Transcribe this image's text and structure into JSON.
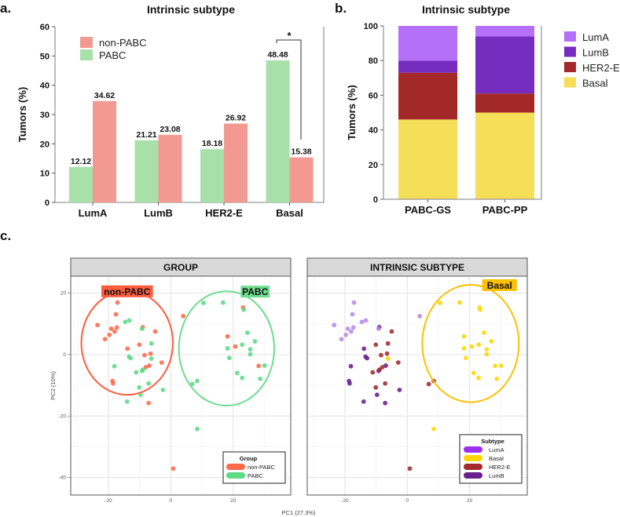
{
  "panel_labels": {
    "a": "a.",
    "b": "b.",
    "c": "c."
  },
  "chart_data": [
    {
      "panel": "a",
      "type": "bar",
      "title": "Intrinsic subtype",
      "xlabel": "",
      "ylabel": "Tumors (%)",
      "ylim": [
        0,
        60
      ],
      "yticks": [
        "0",
        "10",
        "20",
        "30",
        "40",
        "50",
        "60"
      ],
      "categories": [
        "LumA",
        "LumB",
        "HER2-E",
        "Basal"
      ],
      "series": [
        {
          "name": "PABC",
          "color": "#A8E0AA",
          "values": [
            12.12,
            21.21,
            18.18,
            48.48
          ]
        },
        {
          "name": "non-PABC",
          "color": "#F29A92",
          "values": [
            34.62,
            23.08,
            26.92,
            15.38
          ]
        }
      ],
      "legend": [
        "non-PABC",
        "PABC"
      ],
      "legend_position": "top-left",
      "significance": {
        "category": "Basal",
        "label": "*"
      }
    },
    {
      "panel": "b",
      "type": "bar",
      "stacked": true,
      "title": "Intrinsic subtype",
      "ylabel": "Tumors (%)",
      "ylim": [
        0,
        100
      ],
      "yticks": [
        "0",
        "20",
        "40",
        "60",
        "80",
        "100"
      ],
      "categories": [
        "PABC-GS",
        "PABC-PP"
      ],
      "series": [
        {
          "name": "Basal",
          "color": "#F5DE58",
          "values": [
            46,
            50
          ]
        },
        {
          "name": "HER2-E",
          "color": "#A32828",
          "values": [
            27,
            11
          ]
        },
        {
          "name": "LumB",
          "color": "#772CC0",
          "values": [
            7,
            33
          ]
        },
        {
          "name": "LumA",
          "color": "#B570FA",
          "values": [
            20,
            6
          ]
        }
      ],
      "legend": [
        "LumA",
        "LumB",
        "HER2-E",
        "Basal"
      ],
      "legend_position": "right"
    },
    {
      "panel": "c",
      "type": "scatter",
      "xlabel": "PC1 (27.3%)",
      "ylabel": "PC2 (10%)",
      "xlim": [
        -32.1,
        38.5
      ],
      "ylim": [
        -45.7,
        25.5
      ],
      "xticks": [
        "-20",
        "0",
        "20"
      ],
      "yticks": [
        "20",
        "0",
        "-20",
        "-40"
      ],
      "facets": [
        {
          "title": "GROUP",
          "color_by": "group",
          "legend_title": "Group",
          "legend": [
            {
              "name": "non-PABC",
              "color": "#FF6A4A"
            },
            {
              "name": "PABC",
              "color": "#5ED985"
            }
          ],
          "ellipses": [
            {
              "label": "non-PABC",
              "color": "#FF5B3D",
              "cx": -14.0,
              "cy": 3.8,
              "rx": 14.7,
              "ry": 16.9
            },
            {
              "label": "PABC",
              "color": "#6EDC8E",
              "cx": 17.9,
              "cy": 2.0,
              "rx": 15.3,
              "ry": 18.6
            }
          ]
        },
        {
          "title": "INTRINSIC SUBTYPE",
          "color_by": "subtype",
          "legend_title": "Subtype",
          "legend": [
            {
              "name": "LumA",
              "color": "#9B30F0"
            },
            {
              "name": "Basal",
              "color": "#FFD700"
            },
            {
              "name": "HER2-E",
              "color": "#A52A2A"
            },
            {
              "name": "LumB",
              "color": "#6A1F8F"
            }
          ],
          "point_colors": {
            "LumA": "#B68AEE",
            "Basal": "#FFD700",
            "HER2-E": "#A52A2A",
            "LumB": "#6A1F8F"
          },
          "ellipses": [
            {
              "label": "Basal",
              "color": "#FFC000",
              "cx": 20.3,
              "cy": 3.6,
              "rx": 15.5,
              "ry": 19.1
            }
          ]
        }
      ],
      "points": [
        {
          "x": -17.1,
          "y": 16.9,
          "group": "non-PABC",
          "subtype": "LumA"
        },
        {
          "x": -17.6,
          "y": 13.1,
          "group": "non-PABC",
          "subtype": "LumA"
        },
        {
          "x": -23.5,
          "y": 9.6,
          "group": "non-PABC",
          "subtype": "LumA"
        },
        {
          "x": -19.1,
          "y": 8.4,
          "group": "non-PABC",
          "subtype": "LumA"
        },
        {
          "x": -17.3,
          "y": 8.8,
          "group": "non-PABC",
          "subtype": "LumA"
        },
        {
          "x": -18.0,
          "y": 7.5,
          "group": "non-PABC",
          "subtype": "LumA"
        },
        {
          "x": -19.7,
          "y": 6.4,
          "group": "non-PABC",
          "subtype": "LumA"
        },
        {
          "x": -21.1,
          "y": 5.0,
          "group": "non-PABC",
          "subtype": "LumA"
        },
        {
          "x": -9.0,
          "y": 8.9,
          "group": "non-PABC",
          "subtype": "LumB"
        },
        {
          "x": -5.0,
          "y": 7.5,
          "group": "non-PABC",
          "subtype": "HER2-E"
        },
        {
          "x": -10.1,
          "y": 3.2,
          "group": "non-PABC",
          "subtype": "HER2-E"
        },
        {
          "x": -13.9,
          "y": 1.9,
          "group": "non-PABC",
          "subtype": "LumB"
        },
        {
          "x": -8.4,
          "y": -0.2,
          "group": "non-PABC",
          "subtype": "HER2-E"
        },
        {
          "x": -6.5,
          "y": 0.3,
          "group": "non-PABC",
          "subtype": "HER2-E"
        },
        {
          "x": -2.9,
          "y": -2.6,
          "group": "non-PABC",
          "subtype": "HER2-E"
        },
        {
          "x": -6.9,
          "y": -3.6,
          "group": "non-PABC",
          "subtype": "LumB"
        },
        {
          "x": -8.0,
          "y": -4.1,
          "group": "non-PABC",
          "subtype": "HER2-E"
        },
        {
          "x": -18.7,
          "y": -8.6,
          "group": "non-PABC",
          "subtype": "LumB"
        },
        {
          "x": -18.5,
          "y": -9.4,
          "group": "non-PABC",
          "subtype": "LumB"
        },
        {
          "x": -7.1,
          "y": -15.8,
          "group": "non-PABC",
          "subtype": "LumB"
        },
        {
          "x": 4.0,
          "y": 12.5,
          "group": "non-PABC",
          "subtype": "LumA"
        },
        {
          "x": 23.2,
          "y": 15.3,
          "group": "non-PABC",
          "subtype": "Basal"
        },
        {
          "x": 18.2,
          "y": 5.9,
          "group": "non-PABC",
          "subtype": "Basal"
        },
        {
          "x": 20.7,
          "y": 2.6,
          "group": "non-PABC",
          "subtype": "Basal"
        },
        {
          "x": 28.2,
          "y": -3.7,
          "group": "non-PABC",
          "subtype": "Basal"
        },
        {
          "x": 0.8,
          "y": -37.1,
          "group": "non-PABC",
          "subtype": "HER2-E"
        },
        {
          "x": -14.6,
          "y": 10.6,
          "group": "PABC",
          "subtype": "LumA"
        },
        {
          "x": -13.3,
          "y": 11.1,
          "group": "PABC",
          "subtype": "LumA"
        },
        {
          "x": -9.2,
          "y": 8.4,
          "group": "PABC",
          "subtype": "LumA"
        },
        {
          "x": -6.2,
          "y": 3.6,
          "group": "PABC",
          "subtype": "HER2-E"
        },
        {
          "x": -13.4,
          "y": -0.7,
          "group": "PABC",
          "subtype": "LumB"
        },
        {
          "x": -12.9,
          "y": -1.2,
          "group": "PABC",
          "subtype": "LumB"
        },
        {
          "x": -6.2,
          "y": -1.3,
          "group": "PABC",
          "subtype": "Basal"
        },
        {
          "x": -18.1,
          "y": -3.8,
          "group": "PABC",
          "subtype": "LumB"
        },
        {
          "x": -11.1,
          "y": -5.8,
          "group": "PABC",
          "subtype": "HER2-E"
        },
        {
          "x": -9.2,
          "y": -5.3,
          "group": "PABC",
          "subtype": "LumB"
        },
        {
          "x": -8.9,
          "y": -4.9,
          "group": "PABC",
          "subtype": "HER2-E"
        },
        {
          "x": -7.1,
          "y": -9.4,
          "group": "PABC",
          "subtype": "HER2-E"
        },
        {
          "x": -10.1,
          "y": -10.7,
          "group": "PABC",
          "subtype": "HER2-E"
        },
        {
          "x": -2.5,
          "y": -11.5,
          "group": "PABC",
          "subtype": "LumB"
        },
        {
          "x": -9.7,
          "y": -13.1,
          "group": "PABC",
          "subtype": "LumB"
        },
        {
          "x": -14.0,
          "y": -15.3,
          "group": "PABC",
          "subtype": "LumB"
        },
        {
          "x": 10.5,
          "y": 16.8,
          "group": "PABC",
          "subtype": "Basal"
        },
        {
          "x": 16.8,
          "y": 16.9,
          "group": "PABC",
          "subtype": "Basal"
        },
        {
          "x": 23.4,
          "y": 14.6,
          "group": "PABC",
          "subtype": "Basal"
        },
        {
          "x": 24.6,
          "y": 7.1,
          "group": "PABC",
          "subtype": "Basal"
        },
        {
          "x": 27.0,
          "y": 4.3,
          "group": "PABC",
          "subtype": "Basal"
        },
        {
          "x": 22.9,
          "y": 3.2,
          "group": "PABC",
          "subtype": "Basal"
        },
        {
          "x": 18.2,
          "y": 2.0,
          "group": "PABC",
          "subtype": "Basal"
        },
        {
          "x": 25.5,
          "y": 1.7,
          "group": "PABC",
          "subtype": "Basal"
        },
        {
          "x": 25.5,
          "y": 0.1,
          "group": "PABC",
          "subtype": "Basal"
        },
        {
          "x": 18.8,
          "y": -1.1,
          "group": "PABC",
          "subtype": "Basal"
        },
        {
          "x": 30.1,
          "y": -3.6,
          "group": "PABC",
          "subtype": "Basal"
        },
        {
          "x": 21.3,
          "y": -6.0,
          "group": "PABC",
          "subtype": "Basal"
        },
        {
          "x": 22.9,
          "y": -7.6,
          "group": "PABC",
          "subtype": "Basal"
        },
        {
          "x": 28.7,
          "y": -7.9,
          "group": "PABC",
          "subtype": "Basal"
        },
        {
          "x": 8.5,
          "y": -8.6,
          "group": "PABC",
          "subtype": "HER2-E"
        },
        {
          "x": 6.9,
          "y": -9.6,
          "group": "PABC",
          "subtype": "HER2-E"
        },
        {
          "x": 8.5,
          "y": -24.2,
          "group": "PABC",
          "subtype": "Basal"
        }
      ]
    }
  ]
}
